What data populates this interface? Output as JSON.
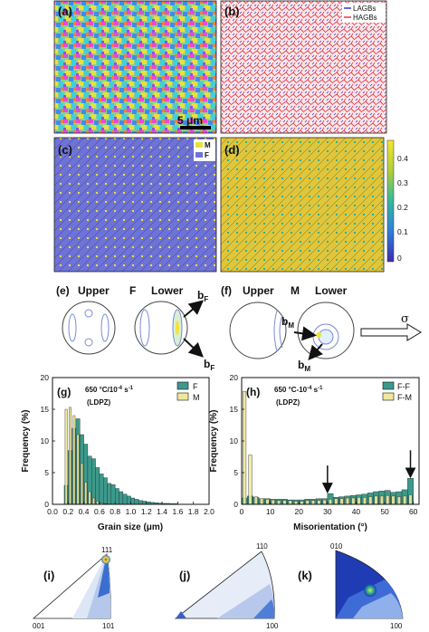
{
  "panels": {
    "a": {
      "label": "(a)",
      "scale_bar": "5 μm"
    },
    "b": {
      "label": "(b)",
      "legend": [
        "LAGBs",
        "HAGBs"
      ]
    },
    "c": {
      "label": "(c)",
      "legend": [
        "M",
        "F"
      ]
    },
    "d": {
      "label": "(d)",
      "colorbar_ticks": [
        "0.4",
        "0.3",
        "0.2",
        "0.1",
        "0"
      ]
    },
    "e": {
      "label": "(e)",
      "upper": "Upper",
      "phase": "F",
      "lower": "Lower",
      "b1": "b",
      "b1_sub": "F",
      "b2": "b",
      "b2_sub": "F"
    },
    "f": {
      "label": "(f)",
      "upper": "Upper",
      "phase": "M",
      "lower": "Lower",
      "b1": "b",
      "b1_sub": "M",
      "b2": "b",
      "b2_sub": "M",
      "stress": "σ"
    },
    "i": {
      "label": "(i)",
      "corners": [
        "111",
        "001",
        "101"
      ]
    },
    "j": {
      "label": "(j)",
      "corners": [
        "110",
        "100"
      ]
    },
    "k": {
      "label": "(k)",
      "corners": [
        "010",
        "100"
      ]
    }
  },
  "chart_data": [
    {
      "id": "g",
      "type": "bar",
      "panel_label": "(g)",
      "condition_line1": "650 °C/10",
      "condition_exp": "-4",
      "condition_unit": " s",
      "condition_unit_exp": "-1",
      "condition_line2": "(LDPZ)",
      "xlabel": "Grain size (μm)",
      "ylabel": "Frequency (%)",
      "xlim": [
        0.0,
        2.0
      ],
      "ylim": [
        0,
        20
      ],
      "xticks": [
        "0.0",
        "0.2",
        "0.4",
        "0.6",
        "0.8",
        "1.0",
        "1.2",
        "1.4",
        "1.6",
        "1.8",
        "2.0"
      ],
      "yticks": [
        "0",
        "5",
        "10",
        "15",
        "20"
      ],
      "bin_width": 0.05,
      "bin_starts": [
        0.15,
        0.2,
        0.25,
        0.3,
        0.35,
        0.4,
        0.45,
        0.5,
        0.55,
        0.6,
        0.65,
        0.7,
        0.75,
        0.8,
        0.85,
        0.9,
        0.95,
        1.0,
        1.05,
        1.1,
        1.15,
        1.2,
        1.25,
        1.3,
        1.35,
        1.4,
        1.45,
        1.5,
        1.55
      ],
      "series": [
        {
          "name": "F",
          "color": "#3b9a8c",
          "values": [
            3,
            8.5,
            12,
            13.5,
            11,
            9.5,
            7.6,
            7.2,
            5.8,
            4.8,
            4.2,
            3.3,
            3.1,
            2.5,
            2.0,
            1.6,
            1.3,
            1.0,
            0.8,
            0.6,
            0.5,
            0.4,
            0.3,
            0.25,
            0.2,
            0.15,
            0.15,
            0.1,
            0.1
          ]
        },
        {
          "name": "M",
          "color": "#eee89a",
          "values": [
            15,
            15.3,
            14,
            11,
            6.5,
            3.5,
            2,
            1,
            0.5,
            0.2,
            0.1,
            0.05,
            0,
            0,
            0,
            0,
            0,
            0,
            0,
            0,
            0,
            0,
            0,
            0,
            0,
            0,
            0,
            0,
            0
          ]
        }
      ]
    },
    {
      "id": "h",
      "type": "bar",
      "panel_label": "(h)",
      "condition_line1": "650 °C-10",
      "condition_exp": "-4",
      "condition_unit": " s",
      "condition_unit_exp": "-1",
      "condition_line2": "(LDPZ)",
      "xlabel": "Misorientation (°)",
      "ylabel": "Frequency (%)",
      "xlim": [
        0,
        62
      ],
      "ylim": [
        0,
        20
      ],
      "xticks": [
        "0",
        "10",
        "20",
        "30",
        "40",
        "50",
        "60"
      ],
      "yticks": [
        "0",
        "5",
        "10",
        "15",
        "20"
      ],
      "bin_width": 2,
      "bin_starts": [
        0,
        2,
        4,
        6,
        8,
        10,
        12,
        14,
        16,
        18,
        20,
        22,
        24,
        26,
        28,
        30,
        32,
        34,
        36,
        38,
        40,
        42,
        44,
        46,
        48,
        50,
        52,
        54,
        56,
        58
      ],
      "series": [
        {
          "name": "F-F",
          "color": "#3b9a8c",
          "values": [
            1.0,
            1.3,
            1.1,
            0.9,
            0.9,
            0.8,
            0.8,
            0.8,
            0.7,
            0.7,
            0.7,
            0.8,
            0.8,
            0.9,
            0.9,
            1.7,
            1.1,
            1.2,
            1.3,
            1.4,
            1.5,
            1.6,
            1.8,
            2.0,
            2.1,
            2.2,
            1.9,
            2.0,
            2.3,
            4.1
          ]
        },
        {
          "name": "F-M",
          "color": "#eee89a",
          "values": [
            17.8,
            7.8,
            1.2,
            0.9,
            0.8,
            0.7,
            0.6,
            0.6,
            0.6,
            0.5,
            0.5,
            0.6,
            0.6,
            0.6,
            0.7,
            0.8,
            0.9,
            0.9,
            1.0,
            1.0,
            1.1,
            1.1,
            1.2,
            1.3,
            1.3,
            1.4,
            1.3,
            1.2,
            1.3,
            1.5
          ]
        }
      ],
      "arrows_at": [
        30,
        59
      ]
    }
  ]
}
